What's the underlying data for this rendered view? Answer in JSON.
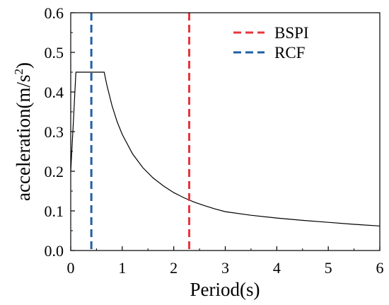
{
  "chart_data": {
    "type": "line",
    "title": "",
    "xlabel": "Period(s)",
    "ylabel_main": "acceleration(m/s",
    "ylabel_sup": "2",
    "ylabel_close": ")",
    "xlim": [
      0,
      6
    ],
    "ylim": [
      0,
      0.6
    ],
    "xticks": [
      "0",
      "1",
      "2",
      "3",
      "4",
      "5",
      "6"
    ],
    "yticks": [
      "0.0",
      "0.1",
      "0.2",
      "0.3",
      "0.4",
      "0.5",
      "0.6"
    ],
    "grid": false,
    "legend_position": "top-right",
    "series": [
      {
        "kind": "curve",
        "color": "#000000",
        "x": [
          0.0,
          0.05,
          0.1,
          0.15,
          0.2,
          0.3,
          0.4,
          0.5,
          0.6,
          0.65,
          0.7,
          0.8,
          0.9,
          1.0,
          1.2,
          1.4,
          1.6,
          1.8,
          2.0,
          2.2,
          2.4,
          2.6,
          2.8,
          3.0,
          3.5,
          4.0,
          4.5,
          5.0,
          5.5,
          6.0
        ],
        "y": [
          0.2,
          0.32,
          0.45,
          0.45,
          0.45,
          0.45,
          0.45,
          0.45,
          0.45,
          0.45,
          0.418,
          0.366,
          0.325,
          0.293,
          0.244,
          0.209,
          0.183,
          0.163,
          0.146,
          0.133,
          0.122,
          0.113,
          0.105,
          0.098,
          0.089,
          0.082,
          0.076,
          0.071,
          0.066,
          0.062
        ]
      },
      {
        "kind": "vline",
        "name": "BSPI",
        "x": 2.3,
        "color": "#e8363b"
      },
      {
        "kind": "vline",
        "name": "RCF",
        "x": 0.4,
        "color": "#1f5fa6"
      }
    ]
  }
}
